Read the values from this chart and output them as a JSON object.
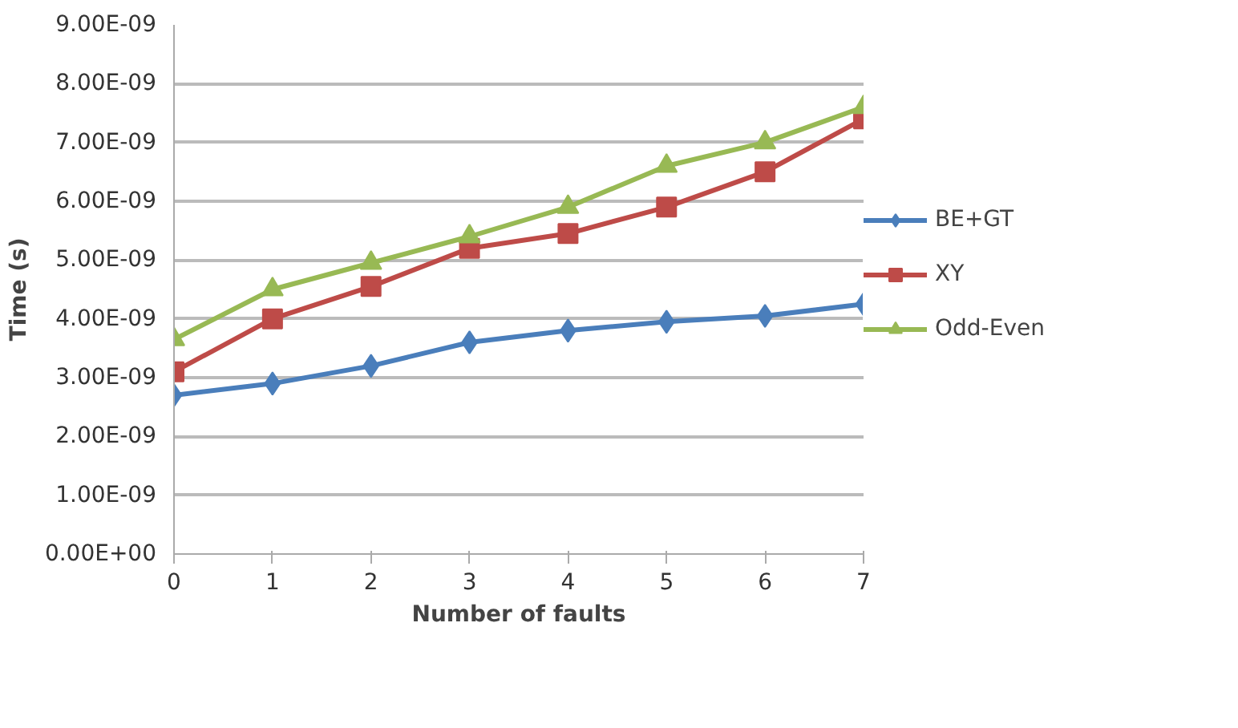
{
  "chart_data": {
    "type": "line",
    "xlabel": "Number of faults",
    "ylabel": "Time (s)",
    "x": [
      0,
      1,
      2,
      3,
      4,
      5,
      6,
      7
    ],
    "series": [
      {
        "name": "BE+GT",
        "color": "#4a7ebb",
        "marker": "diamond",
        "values": [
          2.7e-09,
          2.9e-09,
          3.2e-09,
          3.6e-09,
          3.8e-09,
          3.95e-09,
          4.05e-09,
          4.25e-09
        ]
      },
      {
        "name": "XY",
        "color": "#be4b48",
        "marker": "square",
        "values": [
          3.1e-09,
          4e-09,
          4.55e-09,
          5.2e-09,
          5.45e-09,
          5.9e-09,
          6.5e-09,
          7.4e-09
        ]
      },
      {
        "name": "Odd-Even",
        "color": "#98b954",
        "marker": "triangle",
        "values": [
          3.65e-09,
          4.5e-09,
          4.95e-09,
          5.4e-09,
          5.9e-09,
          6.6e-09,
          7e-09,
          7.6e-09
        ]
      }
    ],
    "xlim": [
      0,
      7
    ],
    "xticks": [
      0,
      1,
      2,
      3,
      4,
      5,
      6,
      7
    ],
    "ylim": [
      0,
      9e-09
    ],
    "yticks": [
      {
        "value": 0,
        "label": "0.00E+00"
      },
      {
        "value": 1e-09,
        "label": "1.00E-09"
      },
      {
        "value": 2e-09,
        "label": "2.00E-09"
      },
      {
        "value": 3e-09,
        "label": "3.00E-09"
      },
      {
        "value": 4e-09,
        "label": "4.00E-09"
      },
      {
        "value": 5e-09,
        "label": "5.00E-09"
      },
      {
        "value": 6e-09,
        "label": "6.00E-09"
      },
      {
        "value": 7e-09,
        "label": "7.00E-09"
      },
      {
        "value": 8e-09,
        "label": "8.00E-09"
      },
      {
        "value": 9e-09,
        "label": "9.00E-09"
      }
    ],
    "grid": "y",
    "legend": "right"
  }
}
